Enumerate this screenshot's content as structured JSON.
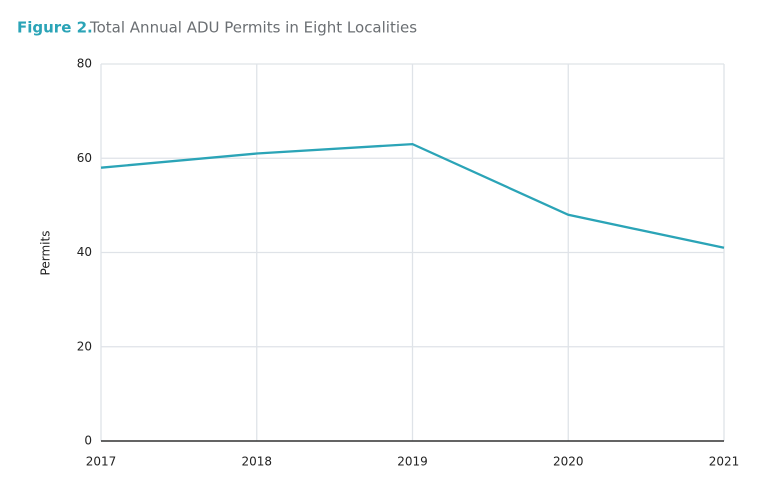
{
  "chart_data": {
    "type": "line",
    "title_label": "Figure 2.",
    "title": "Total Annual ADU Permits in Eight Localities",
    "y_label": "Permits",
    "x": [
      2017,
      2018,
      2019,
      2020,
      2021
    ],
    "xlim": [
      2017,
      2021
    ],
    "xticks": [
      2017,
      2018,
      2019,
      2020,
      2021
    ],
    "series": [
      {
        "name": "Permits",
        "color": "#2ba4b7",
        "values": [
          58,
          61,
          63,
          48,
          41
        ]
      }
    ],
    "ylim": [
      0,
      80
    ],
    "yticks": [
      0,
      20,
      40,
      60,
      80
    ],
    "grid": true
  }
}
